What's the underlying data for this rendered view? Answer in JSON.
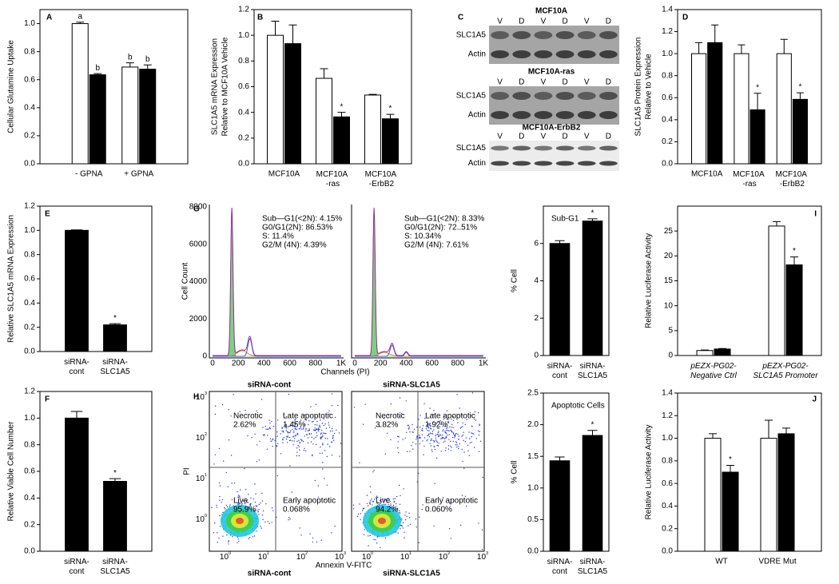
{
  "chart_data": [
    {
      "type": "bar",
      "panel": "A",
      "ylabel": [
        "Cellular Glutamine Uptake"
      ],
      "categories": [
        "- GPNA",
        "+ GPNA"
      ],
      "series": [
        {
          "color": "#ffffff",
          "values": [
            1.0,
            0.69
          ],
          "errors": [
            0.01,
            0.03
          ],
          "annotations": [
            "a",
            "b"
          ]
        },
        {
          "color": "#000000",
          "values": [
            0.635,
            0.675
          ],
          "errors": [
            0.008,
            0.03
          ],
          "annotations": [
            "b",
            "b"
          ]
        }
      ],
      "ylim": [
        0,
        1.1
      ],
      "yticks": [
        {
          "value": 0,
          "label": "0.0"
        },
        0.2,
        0.4,
        0.6,
        0.8,
        {
          "value": 1,
          "label": "1.0"
        }
      ]
    },
    {
      "type": "bar",
      "panel": "B",
      "ylabel": [
        "SLC1A5 mRNA Expression",
        "Relative to MCF10A Vehicle"
      ],
      "categories": [
        "MCF10A",
        "MCF10A -ras",
        "MCF10A -ErbB2"
      ],
      "series": [
        {
          "color": "#ffffff",
          "values": [
            1.0,
            0.665,
            0.535
          ],
          "errors": [
            0.11,
            0.075,
            0.005
          ]
        },
        {
          "color": "#000000",
          "values": [
            0.935,
            0.365,
            0.35
          ],
          "errors": [
            0.145,
            0.035,
            0.035
          ],
          "annotations": [
            null,
            "*",
            "*"
          ]
        }
      ],
      "ylim": [
        0,
        1.2
      ],
      "yticks": [
        {
          "value": 0,
          "label": "0.0"
        },
        0.2,
        0.4,
        0.6,
        0.8,
        {
          "value": 1,
          "label": "1.0"
        },
        1.2
      ]
    },
    {
      "type": "bar",
      "panel": "D",
      "ylabel": [
        "SLC1A5 Protein Expression",
        "Relative to Vehicle"
      ],
      "categories": [
        "MCF10A",
        "MCF10A -ras",
        "MCF10A -ErbB2"
      ],
      "series": [
        {
          "color": "#ffffff",
          "values": [
            1.0,
            1.0,
            1.0
          ],
          "errors": [
            0.1,
            0.08,
            0.13
          ]
        },
        {
          "color": "#000000",
          "values": [
            1.1,
            0.49,
            0.585
          ],
          "errors": [
            0.16,
            0.15,
            0.06
          ],
          "annotations": [
            null,
            "*",
            "*"
          ]
        }
      ],
      "ylim": [
        0,
        1.4
      ],
      "yticks": [
        {
          "value": 0,
          "label": "0.0"
        },
        0.2,
        0.4,
        0.6,
        0.8,
        {
          "value": 1,
          "label": "1.0"
        },
        1.2,
        1.4
      ]
    },
    {
      "type": "bar",
      "panel": "E",
      "ylabel": [
        "Relative SLC1A5 mRNA Expression"
      ],
      "categories": [
        "siRNA-cont",
        "siRNA-SLC1A5"
      ],
      "series": [
        {
          "color": "#000000",
          "values": [
            1.0,
            0.22
          ],
          "errors": [
            0.004,
            0.01
          ],
          "annotations": [
            null,
            "*"
          ]
        }
      ],
      "ylim": [
        0,
        1.2
      ],
      "yticks": [
        {
          "value": 0,
          "label": "0.0"
        },
        0.2,
        0.4,
        0.6,
        0.8,
        {
          "value": 1,
          "label": "1.0"
        },
        1.2
      ]
    },
    {
      "type": "bar",
      "panel": "F",
      "ylabel": [
        "Relative Viable Cell Number"
      ],
      "categories": [
        "siRNA-cont",
        "siRNA-SLC1A5"
      ],
      "series": [
        {
          "color": "#000000",
          "values": [
            1.0,
            0.525
          ],
          "errors": [
            0.05,
            0.02
          ],
          "annotations": [
            null,
            "*"
          ]
        }
      ],
      "ylim": [
        0,
        1.2
      ],
      "yticks": [
        {
          "value": 0,
          "label": "0.0"
        },
        0.2,
        0.4,
        0.6,
        0.8,
        {
          "value": 1,
          "label": "1.0"
        },
        1.2
      ]
    },
    {
      "type": "bar",
      "title": "Sub-G1",
      "ylabel": [
        "% Cell"
      ],
      "categories": [
        "siRNA-cont",
        "siRNA-SLC1A5"
      ],
      "series": [
        {
          "color": "#000000",
          "values": [
            6.0,
            7.2
          ],
          "errors": [
            0.15,
            0.12
          ],
          "annotations": [
            null,
            "*"
          ]
        }
      ],
      "ylim": [
        0,
        8
      ],
      "yticks": [
        0,
        2,
        4,
        6
      ]
    },
    {
      "type": "bar",
      "panel": "I",
      "ylabel": [
        "Relative Luciferase Activity"
      ],
      "categories": [
        "pEZX-PG02-Negative Ctrl",
        "pEZX-PG02-SLC1A5 Promoter"
      ],
      "series": [
        {
          "color": "#ffffff",
          "values": [
            1.0,
            26.0
          ],
          "errors": [
            0.1,
            0.9
          ]
        },
        {
          "color": "#000000",
          "values": [
            1.3,
            18.2
          ],
          "errors": [
            0.1,
            1.6
          ],
          "annotations": [
            null,
            "*"
          ]
        }
      ],
      "ylim": [
        0,
        30
      ],
      "yticks": [
        0,
        5,
        10,
        15,
        20,
        25
      ]
    },
    {
      "type": "bar",
      "title": "Apoptotic Cells",
      "ylabel": [
        "% Cell"
      ],
      "categories": [
        "siRNA-cont",
        "siRNA-SLC1A5"
      ],
      "series": [
        {
          "color": "#000000",
          "values": [
            1.43,
            1.83
          ],
          "errors": [
            0.06,
            0.08
          ],
          "annotations": [
            null,
            "*"
          ]
        }
      ],
      "ylim": [
        0,
        2.5
      ],
      "yticks": [
        {
          "value": 0,
          "label": "0.0"
        },
        0.5,
        {
          "value": 1,
          "label": "1.0"
        },
        1.5,
        {
          "value": 2,
          "label": "2.0"
        },
        2.5
      ]
    },
    {
      "type": "bar",
      "panel": "J",
      "ylabel": [
        "Relative Luciferase Activity"
      ],
      "categories": [
        "WT",
        "VDRE Mut"
      ],
      "series": [
        {
          "color": "#ffffff",
          "values": [
            1.0,
            1.0
          ],
          "errors": [
            0.04,
            0.16
          ]
        },
        {
          "color": "#000000",
          "values": [
            0.7,
            1.04
          ],
          "errors": [
            0.06,
            0.05
          ],
          "annotations": [
            "*",
            null
          ]
        }
      ],
      "ylim": [
        0,
        1.4
      ],
      "yticks": [
        {
          "value": 0,
          "label": "0.0"
        },
        0.2,
        0.4,
        0.6,
        0.8,
        {
          "value": 1,
          "label": "1.0"
        },
        1.2,
        1.4
      ]
    }
  ],
  "blots": {
    "panel": "C",
    "blots": [
      {
        "title": "MCF10A",
        "lanes": [
          "V",
          "D",
          "V",
          "D",
          "V",
          "D"
        ],
        "rows": [
          "SLC1A5",
          "Actin"
        ]
      },
      {
        "title": "MCF10A-ras",
        "lanes": [
          "V",
          "D",
          "V",
          "D",
          "V",
          "D"
        ],
        "rows": [
          "SLC1A5",
          "Actin"
        ]
      },
      {
        "title": "MCF10A-ErbB2",
        "lanes": [
          "V",
          "D",
          "V",
          "D",
          "V",
          "D"
        ],
        "rows": [
          "SLC1A5",
          "Actin"
        ]
      }
    ]
  },
  "cell_cycle": {
    "panel": "G",
    "y_title": "Cell Count",
    "x_title": "Channels (PI)",
    "yticks": [
      0,
      2000,
      4000,
      6000,
      8000
    ],
    "xticks": [
      0,
      200,
      400,
      600,
      800,
      "1K"
    ],
    "plots": [
      {
        "stats": [
          "Sub—G1(<2N): 4.15%",
          "G0/G1(2N): 86.53%",
          "S: 11.4%",
          "G2/M (4N): 4.39%"
        ],
        "label": "siRNA-cont"
      },
      {
        "stats": [
          "Sub—G1(<2N): 8.33%",
          "G0/G1(2N): 72..51%",
          "S: 10.34%",
          "G2/M (4N): 7.61%"
        ],
        "label": "siRNA-SLC1A5"
      }
    ]
  },
  "apoptosis": {
    "panel": "H",
    "y_title": "PI",
    "x_title": "Annexin V-FITC",
    "ticks": [
      {
        "base": 10,
        "exponent": 0
      },
      {
        "base": 10,
        "exponent": 1
      },
      {
        "base": 10,
        "exponent": 2
      },
      {
        "base": 10,
        "exponent": 3
      }
    ],
    "plots": [
      {
        "quadrants": [
          {
            "name": "Necrotic",
            "percent": "2.62%"
          },
          {
            "name": "Late apoptotic",
            "percent": "1.45%"
          },
          {
            "name": "Live",
            "percent": "95.9%"
          },
          {
            "name": "Early apoptotic",
            "percent": "0.068%"
          }
        ],
        "label": "siRNA-cont"
      },
      {
        "quadrants": [
          {
            "name": "Necrotic",
            "percent": "3.82%"
          },
          {
            "name": "Late apoptotic",
            "percent": "1.92%"
          },
          {
            "name": "Live",
            "percent": "94.2%"
          },
          {
            "name": "Early apoptotic",
            "percent": "0.060%"
          }
        ],
        "label": "siRNA-SLC1A5"
      }
    ]
  }
}
